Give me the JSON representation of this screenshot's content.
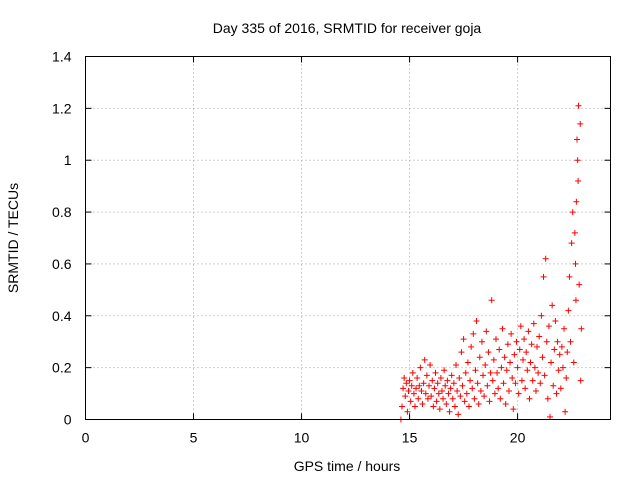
{
  "chart_data": {
    "type": "scatter",
    "title": "Day 335 of 2016, SRMTID for receiver goja",
    "xlabel": "GPS time / hours",
    "ylabel": "SRMTID / TECUs",
    "xlim": [
      0,
      24.3
    ],
    "ylim": [
      0,
      1.4
    ],
    "xticks": [
      0,
      5,
      10,
      15,
      20
    ],
    "yticks": [
      0,
      0.2,
      0.4,
      0.6,
      0.8,
      1,
      1.2,
      1.4
    ],
    "xtick_labels": [
      "0",
      "5",
      "10",
      "15",
      "20"
    ],
    "ytick_labels": [
      "0",
      "0.2",
      "0.4",
      "0.6",
      "0.8",
      "1",
      "1.2",
      "1.4"
    ],
    "grid": true,
    "marker": "+",
    "series": [
      {
        "name": "goja",
        "color": "#ff0000",
        "points": [
          [
            14.6,
            0.0
          ],
          [
            14.65,
            0.05
          ],
          [
            14.7,
            0.12
          ],
          [
            14.75,
            0.16
          ],
          [
            14.8,
            0.09
          ],
          [
            14.85,
            0.14
          ],
          [
            14.9,
            0.03
          ],
          [
            14.95,
            0.11
          ],
          [
            15.0,
            0.15
          ],
          [
            15.05,
            0.07
          ],
          [
            15.1,
            0.13
          ],
          [
            15.15,
            0.18
          ],
          [
            15.2,
            0.1
          ],
          [
            15.25,
            0.05
          ],
          [
            15.3,
            0.12
          ],
          [
            15.35,
            0.16
          ],
          [
            15.4,
            0.08
          ],
          [
            15.45,
            0.13
          ],
          [
            15.5,
            0.2
          ],
          [
            15.55,
            0.11
          ],
          [
            15.6,
            0.06
          ],
          [
            15.65,
            0.14
          ],
          [
            15.7,
            0.23
          ],
          [
            15.75,
            0.1
          ],
          [
            15.8,
            0.17
          ],
          [
            15.85,
            0.08
          ],
          [
            15.9,
            0.13
          ],
          [
            15.95,
            0.21
          ],
          [
            16.0,
            0.09
          ],
          [
            16.05,
            0.15
          ],
          [
            16.1,
            0.05
          ],
          [
            16.15,
            0.12
          ],
          [
            16.2,
            0.18
          ],
          [
            16.25,
            0.07
          ],
          [
            16.3,
            0.14
          ],
          [
            16.35,
            0.1
          ],
          [
            16.4,
            0.04
          ],
          [
            16.45,
            0.16
          ],
          [
            16.5,
            0.11
          ],
          [
            16.55,
            0.08
          ],
          [
            16.6,
            0.19
          ],
          [
            16.65,
            0.13
          ],
          [
            16.7,
            0.06
          ],
          [
            16.75,
            0.15
          ],
          [
            16.8,
            0.1
          ],
          [
            16.85,
            0.03
          ],
          [
            16.9,
            0.12
          ],
          [
            16.95,
            0.17
          ],
          [
            17.0,
            0.08
          ],
          [
            17.05,
            0.14
          ],
          [
            17.1,
            0.05
          ],
          [
            17.15,
            0.21
          ],
          [
            17.2,
            0.11
          ],
          [
            17.25,
            0.02
          ],
          [
            17.3,
            0.16
          ],
          [
            17.35,
            0.09
          ],
          [
            17.4,
            0.26
          ],
          [
            17.45,
            0.13
          ],
          [
            17.5,
            0.31
          ],
          [
            17.55,
            0.07
          ],
          [
            17.6,
            0.18
          ],
          [
            17.65,
            0.1
          ],
          [
            17.7,
            0.22
          ],
          [
            17.75,
            0.05
          ],
          [
            17.8,
            0.15
          ],
          [
            17.85,
            0.28
          ],
          [
            17.9,
            0.12
          ],
          [
            17.95,
            0.33
          ],
          [
            18.0,
            0.08
          ],
          [
            18.05,
            0.19
          ],
          [
            18.1,
            0.38
          ],
          [
            18.15,
            0.14
          ],
          [
            18.2,
            0.06
          ],
          [
            18.25,
            0.24
          ],
          [
            18.3,
            0.11
          ],
          [
            18.35,
            0.3
          ],
          [
            18.4,
            0.17
          ],
          [
            18.45,
            0.09
          ],
          [
            18.5,
            0.21
          ],
          [
            18.55,
            0.34
          ],
          [
            18.6,
            0.13
          ],
          [
            18.65,
            0.26
          ],
          [
            18.7,
            0.07
          ],
          [
            18.75,
            0.18
          ],
          [
            18.8,
            0.46
          ],
          [
            18.85,
            0.15
          ],
          [
            18.9,
            0.23
          ],
          [
            18.95,
            0.1
          ],
          [
            19.0,
            0.31
          ],
          [
            19.05,
            0.18
          ],
          [
            19.1,
            0.12
          ],
          [
            19.15,
            0.27
          ],
          [
            19.2,
            0.08
          ],
          [
            19.25,
            0.2
          ],
          [
            19.3,
            0.35
          ],
          [
            19.35,
            0.14
          ],
          [
            19.4,
            0.24
          ],
          [
            19.45,
            0.06
          ],
          [
            19.5,
            0.19
          ],
          [
            19.55,
            0.29
          ],
          [
            19.6,
            0.11
          ],
          [
            19.65,
            0.22
          ],
          [
            19.7,
            0.33
          ],
          [
            19.75,
            0.16
          ],
          [
            19.8,
            0.04
          ],
          [
            19.85,
            0.25
          ],
          [
            19.9,
            0.14
          ],
          [
            19.95,
            0.3
          ],
          [
            20.0,
            0.2
          ],
          [
            20.05,
            0.1
          ],
          [
            20.1,
            0.27
          ],
          [
            20.15,
            0.36
          ],
          [
            20.2,
            0.15
          ],
          [
            20.25,
            0.23
          ],
          [
            20.3,
            0.31
          ],
          [
            20.35,
            0.12
          ],
          [
            20.4,
            0.26
          ],
          [
            20.45,
            0.19
          ],
          [
            20.5,
            0.34
          ],
          [
            20.55,
            0.08
          ],
          [
            20.6,
            0.22
          ],
          [
            20.65,
            0.29
          ],
          [
            20.7,
            0.15
          ],
          [
            20.75,
            0.37
          ],
          [
            20.8,
            0.2
          ],
          [
            20.85,
            0.11
          ],
          [
            20.9,
            0.28
          ],
          [
            20.95,
            0.18
          ],
          [
            21.0,
            0.32
          ],
          [
            21.05,
            0.14
          ],
          [
            21.1,
            0.4
          ],
          [
            21.15,
            0.24
          ],
          [
            21.2,
            0.55
          ],
          [
            21.25,
            0.17
          ],
          [
            21.3,
            0.62
          ],
          [
            21.35,
            0.3
          ],
          [
            21.4,
            0.08
          ],
          [
            21.45,
            0.36
          ],
          [
            21.5,
            0.01
          ],
          [
            21.55,
            0.22
          ],
          [
            21.6,
            0.44
          ],
          [
            21.65,
            0.13
          ],
          [
            21.7,
            0.27
          ],
          [
            21.75,
            0.38
          ],
          [
            21.8,
            0.1
          ],
          [
            21.85,
            0.3
          ],
          [
            21.9,
            0.19
          ],
          [
            21.95,
            0.25
          ],
          [
            22.0,
            0.12
          ],
          [
            22.05,
            0.28
          ],
          [
            22.1,
            0.2
          ],
          [
            22.15,
            0.35
          ],
          [
            22.2,
            0.03
          ],
          [
            22.25,
            0.16
          ],
          [
            22.3,
            0.26
          ],
          [
            22.35,
            0.42
          ],
          [
            22.4,
            0.55
          ],
          [
            22.45,
            0.3
          ],
          [
            22.5,
            0.68
          ],
          [
            22.55,
            0.8
          ],
          [
            22.6,
            0.22
          ],
          [
            22.65,
            0.72
          ],
          [
            22.7,
            0.46
          ],
          [
            22.75,
            1.08
          ],
          [
            22.8,
            0.92
          ],
          [
            22.82,
            1.21
          ],
          [
            22.85,
            0.52
          ],
          [
            22.9,
            1.14
          ],
          [
            22.92,
            0.15
          ],
          [
            22.95,
            0.35
          ],
          [
            22.68,
            0.6
          ],
          [
            22.72,
            0.84
          ],
          [
            22.78,
            1.0
          ]
        ]
      }
    ]
  }
}
